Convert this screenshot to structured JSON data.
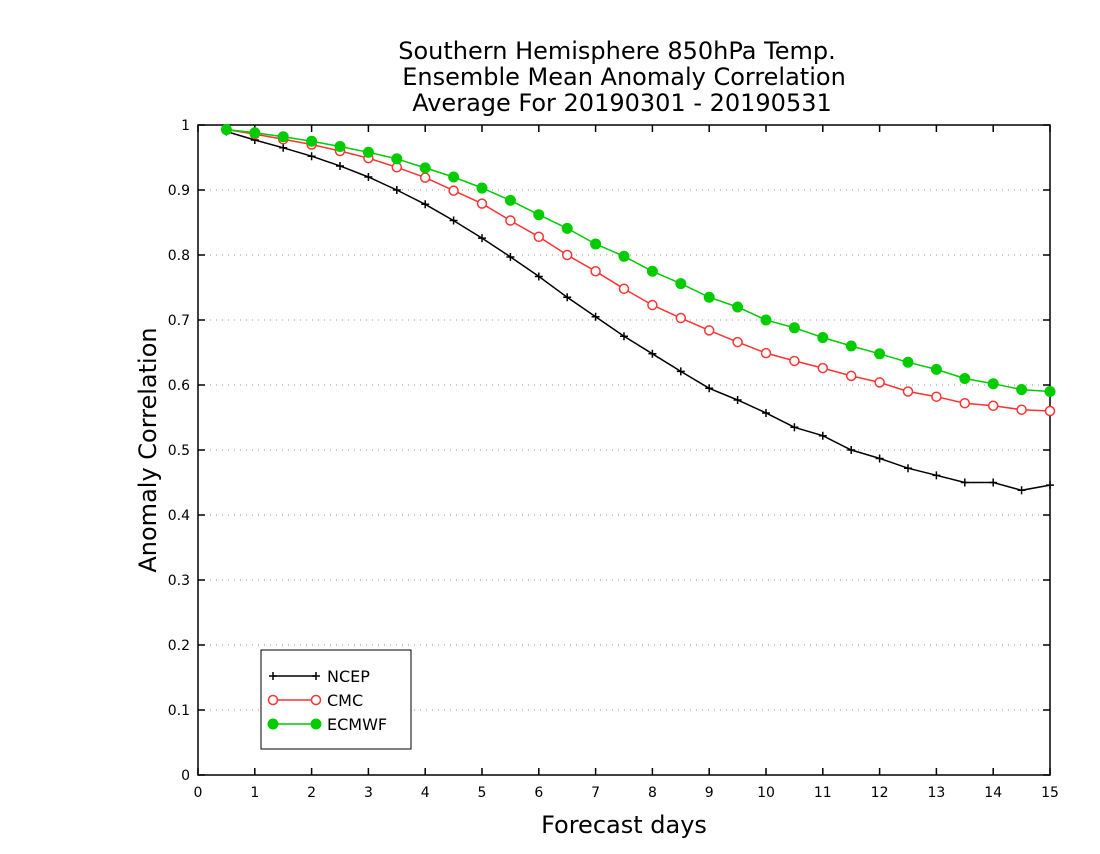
{
  "chart_data": {
    "type": "line",
    "title": [
      "Southern Hemisphere 850hPa Temp.",
      "Ensemble Mean Anomaly Correlation",
      "Average For 20190301 - 20190531"
    ],
    "xlabel": "Forecast days",
    "ylabel": "Anomaly Correlation",
    "xlim": [
      0,
      15
    ],
    "ylim": [
      0,
      1
    ],
    "xticks": [
      0,
      1,
      2,
      3,
      4,
      5,
      6,
      7,
      8,
      9,
      10,
      11,
      12,
      13,
      14,
      15
    ],
    "yticks": [
      0,
      0.1,
      0.2,
      0.3,
      0.4,
      0.5,
      0.6,
      0.7,
      0.8,
      0.9,
      1
    ],
    "ytick_labels": [
      "0",
      "0.1",
      "0.2",
      "0.3",
      "0.4",
      "0.5",
      "0.6",
      "0.7",
      "0.8",
      "0.9",
      "1"
    ],
    "grid": "horizontal dotted",
    "legend_position": "bottom-left",
    "x": [
      0.5,
      1,
      1.5,
      2,
      2.5,
      3,
      3.5,
      4,
      4.5,
      5,
      5.5,
      6,
      6.5,
      7,
      7.5,
      8,
      8.5,
      9,
      9.5,
      10,
      10.5,
      11,
      11.5,
      12,
      12.5,
      13,
      13.5,
      14,
      14.5,
      15
    ],
    "series": [
      {
        "name": "NCEP",
        "color": "#000000",
        "marker": "plus",
        "values": [
          0.99,
          0.977,
          0.965,
          0.952,
          0.937,
          0.92,
          0.9,
          0.878,
          0.853,
          0.826,
          0.797,
          0.767,
          0.735,
          0.705,
          0.675,
          0.648,
          0.621,
          0.595,
          0.577,
          0.557,
          0.535,
          0.522,
          0.5,
          0.487,
          0.472,
          0.461,
          0.45,
          0.45,
          0.438,
          0.446
        ]
      },
      {
        "name": "CMC",
        "color": "#ff3333",
        "marker": "open-circle",
        "values": [
          0.993,
          0.986,
          0.978,
          0.97,
          0.96,
          0.949,
          0.935,
          0.919,
          0.899,
          0.879,
          0.853,
          0.828,
          0.8,
          0.775,
          0.748,
          0.723,
          0.703,
          0.684,
          0.666,
          0.649,
          0.637,
          0.626,
          0.614,
          0.604,
          0.59,
          0.582,
          0.572,
          0.568,
          0.562,
          0.56
        ]
      },
      {
        "name": "ECMWF",
        "color": "#00cc00",
        "marker": "filled-circle",
        "values": [
          0.993,
          0.988,
          0.982,
          0.975,
          0.967,
          0.958,
          0.948,
          0.934,
          0.92,
          0.903,
          0.884,
          0.862,
          0.841,
          0.817,
          0.798,
          0.775,
          0.756,
          0.735,
          0.72,
          0.7,
          0.688,
          0.673,
          0.66,
          0.648,
          0.635,
          0.624,
          0.61,
          0.602,
          0.593,
          0.59
        ]
      }
    ]
  }
}
